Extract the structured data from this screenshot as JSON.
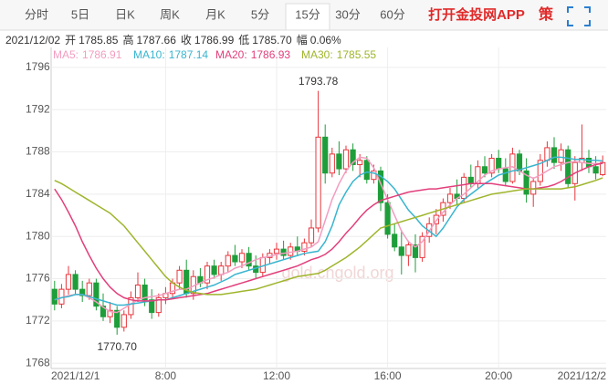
{
  "tabs": [
    "分时",
    "5日",
    "日K",
    "周K",
    "月K",
    "5分",
    "15分",
    "30分",
    "60分"
  ],
  "active_tab": 6,
  "app_link": "打开金投网APP",
  "strategy": "策",
  "info": {
    "date": "2021/12/02",
    "items": [
      {
        "label": "开",
        "value": "1785.85"
      },
      {
        "label": "高",
        "value": "1787.66"
      },
      {
        "label": "收",
        "value": "1786.99"
      },
      {
        "label": "低",
        "value": "1785.70"
      },
      {
        "label": "幅",
        "value": "0.06%"
      }
    ]
  },
  "chart_data": {
    "type": "candlestick",
    "watermark": "gold.cngold.org",
    "categories": [
      "2021/12/1",
      null,
      null,
      null,
      null,
      null,
      null,
      null,
      null,
      null,
      null,
      null,
      null,
      null,
      null,
      null,
      "8:00",
      null,
      null,
      null,
      null,
      null,
      null,
      null,
      null,
      null,
      null,
      null,
      null,
      null,
      null,
      null,
      "12:00",
      null,
      null,
      null,
      null,
      null,
      null,
      null,
      null,
      null,
      null,
      null,
      null,
      null,
      null,
      null,
      "16:00",
      null,
      null,
      null,
      null,
      null,
      null,
      null,
      null,
      null,
      null,
      null,
      null,
      null,
      null,
      null,
      "20:00",
      null,
      null,
      null,
      null,
      null,
      null,
      null,
      null,
      null,
      null,
      null,
      null,
      null,
      null,
      "2021/12/2"
    ],
    "candles": {
      "up_color": "#e8363c",
      "down_color": "#1e9e3a",
      "open": [
        1775.0,
        1773.6,
        1775.0,
        1776.4,
        1775.0,
        1774.4,
        1775.6,
        1773.4,
        1772.4,
        1773.0,
        1771.4,
        1772.6,
        1774.2,
        1775.4,
        1774.0,
        1772.8,
        1774.2,
        1774.6,
        1775.6,
        1776.8,
        1774.6,
        1776.2,
        1775.6,
        1777.2,
        1776.4,
        1777.2,
        1778.2,
        1777.6,
        1778.4,
        1777.2,
        1776.6,
        1778.0,
        1778.4,
        1778.8,
        1778.2,
        1779.0,
        1778.6,
        1779.4,
        1780.8,
        1789.4,
        1786.0,
        1787.8,
        1786.4,
        1788.2,
        1786.8,
        1787.2,
        1785.4,
        1786.2,
        1783.2,
        1780.2,
        1779.0,
        1778.2,
        1779.2,
        1778.0,
        1780.0,
        1781.2,
        1782.0,
        1783.2,
        1784.0,
        1783.6,
        1785.6,
        1785.0,
        1786.6,
        1786.0,
        1787.4,
        1786.4,
        1785.2,
        1787.8,
        1786.2,
        1784.0,
        1785.2,
        1787.2,
        1788.4,
        1787.0,
        1788.2,
        1785.0,
        1787.0,
        1787.4,
        1786.6,
        1785.85
      ],
      "high": [
        1775.8,
        1775.5,
        1777.2,
        1776.8,
        1775.8,
        1776.0,
        1776.0,
        1774.6,
        1773.8,
        1773.4,
        1773.0,
        1774.8,
        1776.6,
        1776.0,
        1775.0,
        1774.6,
        1775.2,
        1776.0,
        1777.2,
        1777.8,
        1776.8,
        1777.0,
        1777.6,
        1777.8,
        1777.6,
        1778.6,
        1779.2,
        1778.8,
        1779.0,
        1778.2,
        1778.4,
        1778.8,
        1779.4,
        1779.6,
        1779.4,
        1780.0,
        1779.8,
        1781.6,
        1793.78,
        1790.6,
        1788.4,
        1789.0,
        1788.6,
        1788.8,
        1787.8,
        1787.6,
        1786.8,
        1786.6,
        1784.0,
        1781.2,
        1780.6,
        1779.6,
        1780.2,
        1780.4,
        1781.8,
        1782.6,
        1783.6,
        1784.6,
        1785.4,
        1786.0,
        1786.8,
        1787.2,
        1787.6,
        1787.8,
        1788.2,
        1787.4,
        1788.4,
        1788.2,
        1787.4,
        1785.6,
        1787.8,
        1789.0,
        1789.4,
        1788.8,
        1788.6,
        1787.6,
        1790.6,
        1788.2,
        1787.6,
        1787.66
      ],
      "low": [
        1773.0,
        1773.2,
        1774.5,
        1774.5,
        1773.8,
        1774.0,
        1773.0,
        1772.0,
        1771.8,
        1770.7,
        1771.0,
        1772.2,
        1773.8,
        1773.4,
        1772.2,
        1772.4,
        1773.6,
        1774.2,
        1775.0,
        1774.2,
        1774.0,
        1775.2,
        1775.0,
        1776.0,
        1775.8,
        1776.6,
        1777.2,
        1777.0,
        1776.8,
        1776.0,
        1776.2,
        1777.4,
        1777.8,
        1777.8,
        1777.8,
        1778.2,
        1778.2,
        1779.0,
        1780.4,
        1785.0,
        1785.6,
        1785.8,
        1786.0,
        1786.2,
        1785.6,
        1785.0,
        1785.0,
        1782.4,
        1779.8,
        1778.6,
        1776.4,
        1777.2,
        1776.6,
        1777.6,
        1779.4,
        1780.2,
        1781.4,
        1782.6,
        1783.0,
        1783.2,
        1784.6,
        1784.6,
        1785.6,
        1785.6,
        1786.0,
        1784.8,
        1785.0,
        1785.8,
        1783.2,
        1782.8,
        1784.8,
        1786.6,
        1786.4,
        1786.2,
        1784.6,
        1783.4,
        1786.2,
        1786.0,
        1785.4,
        1785.7
      ],
      "close": [
        1773.6,
        1775.0,
        1776.4,
        1775.0,
        1774.4,
        1775.6,
        1773.4,
        1772.4,
        1773.0,
        1771.4,
        1772.6,
        1774.2,
        1775.4,
        1774.0,
        1772.8,
        1774.2,
        1774.6,
        1775.6,
        1776.8,
        1774.6,
        1776.2,
        1775.6,
        1777.2,
        1776.4,
        1777.2,
        1778.2,
        1777.6,
        1778.4,
        1777.2,
        1776.6,
        1778.0,
        1778.4,
        1778.8,
        1778.2,
        1779.0,
        1778.6,
        1779.4,
        1780.8,
        1789.4,
        1786.0,
        1787.8,
        1786.4,
        1788.2,
        1786.8,
        1787.2,
        1785.4,
        1786.2,
        1783.2,
        1780.2,
        1779.0,
        1778.2,
        1779.2,
        1778.0,
        1780.0,
        1781.2,
        1782.0,
        1783.2,
        1784.0,
        1783.6,
        1785.6,
        1785.0,
        1786.6,
        1786.0,
        1787.4,
        1786.4,
        1785.2,
        1787.8,
        1786.2,
        1784.0,
        1785.2,
        1787.2,
        1788.4,
        1787.0,
        1788.2,
        1785.0,
        1787.0,
        1787.4,
        1786.6,
        1786.0,
        1786.99
      ]
    },
    "extreme_labels": [
      {
        "index": 38,
        "text": "1793.78"
      },
      {
        "index": 9,
        "text": "1770.70"
      }
    ],
    "series": [
      {
        "name": "MA5:",
        "color": "#f29dc0",
        "values": [
          1774.0,
          1774.2,
          1774.4,
          1774.5,
          1774.5,
          1774.2,
          1773.8,
          1773.3,
          1772.9,
          1772.8,
          1773.2,
          1773.6,
          1774.0,
          1774.2,
          1774.3,
          1774.4,
          1774.6,
          1774.8,
          1775.0,
          1775.0,
          1775.3,
          1775.6,
          1775.9,
          1776.1,
          1776.4,
          1776.6,
          1777.0,
          1777.2,
          1777.5,
          1777.8,
          1778.0,
          1778.1,
          1778.3,
          1778.4,
          1778.5,
          1778.6,
          1778.8,
          1779.0,
          1779.5,
          1781.5,
          1783.5,
          1785.0,
          1786.2,
          1787.0,
          1787.5,
          1787.4,
          1786.5,
          1785.0,
          1783.5,
          1782.0,
          1780.5,
          1779.5,
          1779.0,
          1779.5,
          1780.5,
          1781.5,
          1782.3,
          1783.0,
          1783.6,
          1784.0,
          1784.6,
          1785.2,
          1785.8,
          1786.2,
          1786.4,
          1786.5,
          1786.6,
          1786.2,
          1785.8,
          1785.5,
          1785.8,
          1786.2,
          1786.6,
          1786.8,
          1787.0,
          1787.1,
          1787.0,
          1786.9,
          1786.9,
          1786.91
        ]
      },
      {
        "name": "MA10:",
        "color": "#38b5cf",
        "values": [
          1774.0,
          1774.2,
          1774.3,
          1774.5,
          1774.5,
          1774.3,
          1774.1,
          1773.9,
          1773.7,
          1773.5,
          1773.5,
          1773.6,
          1773.7,
          1773.8,
          1773.9,
          1774.0,
          1774.0,
          1774.2,
          1774.4,
          1774.6,
          1774.8,
          1775.0,
          1775.2,
          1775.4,
          1775.7,
          1776.0,
          1776.4,
          1776.6,
          1776.8,
          1777.0,
          1777.2,
          1777.4,
          1777.6,
          1777.8,
          1778.0,
          1778.2,
          1778.4,
          1778.5,
          1778.6,
          1779.5,
          1781.0,
          1783.0,
          1784.2,
          1785.2,
          1785.8,
          1786.1,
          1786.0,
          1785.7,
          1785.2,
          1784.5,
          1783.5,
          1782.5,
          1781.8,
          1781.0,
          1780.5,
          1780.0,
          1780.8,
          1781.8,
          1782.8,
          1783.5,
          1784.0,
          1784.5,
          1785.0,
          1785.4,
          1785.8,
          1786.0,
          1786.2,
          1786.3,
          1786.5,
          1786.7,
          1786.9,
          1787.2,
          1787.5,
          1787.5,
          1787.4,
          1787.3,
          1787.3,
          1787.2,
          1787.2,
          1787.14
        ]
      },
      {
        "name": "MA20:",
        "color": "#e23f7b",
        "values": [
          1784.5,
          1783.5,
          1782.3,
          1781.0,
          1779.5,
          1778.2,
          1777.0,
          1776.0,
          1775.2,
          1774.6,
          1774.2,
          1774.0,
          1773.9,
          1773.9,
          1773.9,
          1774.0,
          1774.0,
          1774.1,
          1774.2,
          1774.3,
          1774.4,
          1774.5,
          1774.6,
          1774.8,
          1775.0,
          1775.2,
          1775.4,
          1775.6,
          1775.8,
          1776.0,
          1776.2,
          1776.4,
          1776.6,
          1776.8,
          1777.0,
          1777.2,
          1777.5,
          1777.8,
          1778.0,
          1778.3,
          1778.8,
          1779.5,
          1780.3,
          1781.0,
          1781.8,
          1782.5,
          1783.0,
          1783.4,
          1783.6,
          1783.8,
          1784.0,
          1784.2,
          1784.3,
          1784.4,
          1784.5,
          1784.5,
          1784.6,
          1784.7,
          1784.8,
          1784.9,
          1785.0,
          1785.0,
          1785.0,
          1785.0,
          1784.9,
          1784.8,
          1784.7,
          1784.6,
          1784.5,
          1784.5,
          1784.6,
          1784.7,
          1784.9,
          1785.2,
          1785.6,
          1786.0,
          1786.3,
          1786.6,
          1786.8,
          1786.93
        ]
      },
      {
        "name": "MA30:",
        "color": "#9fb52c",
        "values": [
          1785.3,
          1785.0,
          1784.6,
          1784.2,
          1783.8,
          1783.4,
          1783.0,
          1782.6,
          1782.2,
          1781.6,
          1781.0,
          1780.2,
          1779.4,
          1778.6,
          1777.8,
          1777.0,
          1776.2,
          1775.6,
          1775.2,
          1774.9,
          1774.7,
          1774.6,
          1774.5,
          1774.5,
          1774.5,
          1774.6,
          1774.7,
          1774.8,
          1774.9,
          1775.0,
          1775.2,
          1775.4,
          1775.6,
          1775.8,
          1776.0,
          1776.2,
          1776.3,
          1776.4,
          1776.5,
          1776.8,
          1777.2,
          1777.6,
          1778.0,
          1778.5,
          1779.0,
          1779.6,
          1780.2,
          1780.8,
          1781.0,
          1781.2,
          1781.4,
          1781.6,
          1781.8,
          1782.0,
          1782.2,
          1782.4,
          1782.6,
          1782.8,
          1783.0,
          1783.2,
          1783.4,
          1783.6,
          1783.8,
          1784.0,
          1784.1,
          1784.2,
          1784.3,
          1784.4,
          1784.5,
          1784.5,
          1784.5,
          1784.5,
          1784.5,
          1784.5,
          1784.6,
          1784.7,
          1784.9,
          1785.1,
          1785.3,
          1785.55
        ]
      }
    ],
    "ylim": [
      1767.5,
      1797.2
    ],
    "yticks": [
      1768,
      1772,
      1776,
      1780,
      1784,
      1788,
      1792,
      1796
    ],
    "grid": true
  }
}
